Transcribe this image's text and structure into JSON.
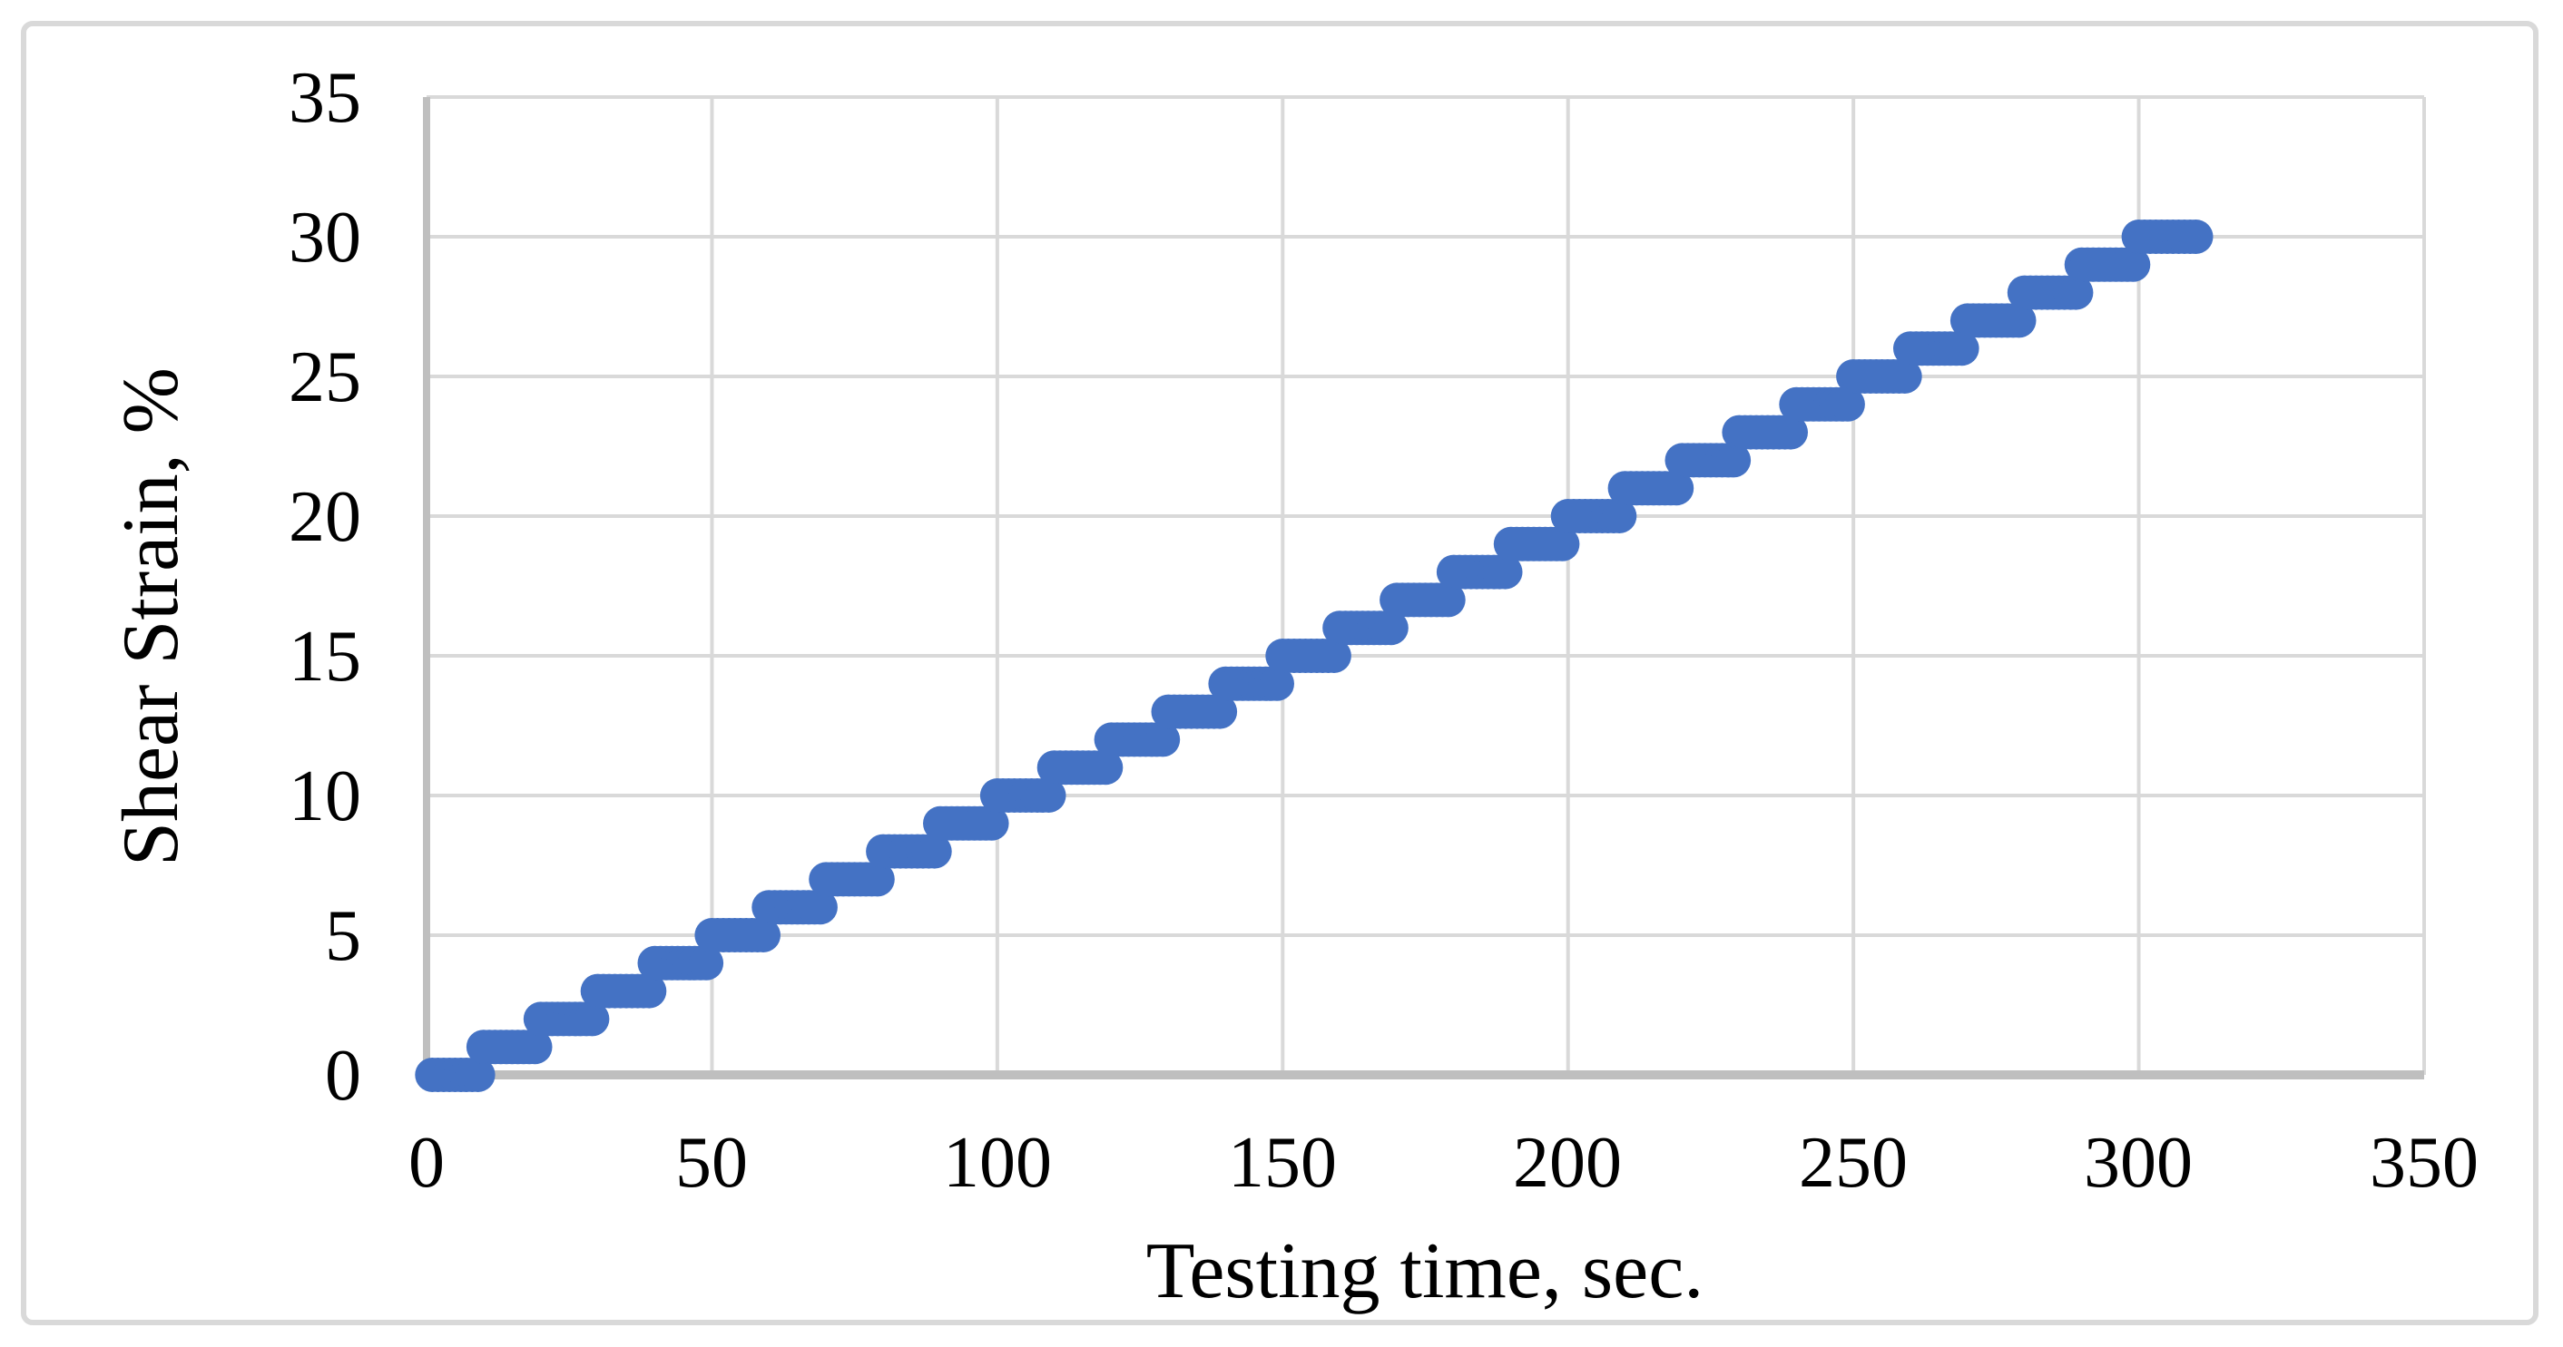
{
  "figure": {
    "background": "#FFFFFF",
    "border_color": "#D9D9D9"
  },
  "chart_data": {
    "type": "scatter",
    "title": "",
    "xlabel": "Testing time, sec.",
    "ylabel": "Shear Strain, %",
    "xlim": [
      0,
      350
    ],
    "ylim": [
      0,
      35
    ],
    "x_ticks": [
      "0",
      "50",
      "100",
      "150",
      "200",
      "250",
      "300",
      "350"
    ],
    "y_ticks": [
      "0",
      "5",
      "10",
      "15",
      "20",
      "25",
      "30",
      "35"
    ],
    "grid": true,
    "legend_position": "none",
    "marker": {
      "shape": "circle",
      "color": "#4472C4",
      "radius_px": 19
    },
    "colors": {
      "gridline": "#D9D9D9",
      "axis_line": "#BFBFBF",
      "text": "#000000"
    },
    "series": [
      {
        "name": "shear-strain-vs-time",
        "pattern": "staircase",
        "strain_step_percent": 1,
        "step_duration_sec": 10,
        "sample_interval_sec": 1,
        "x_end_sec": 310,
        "y_end_percent": 30,
        "steps": [
          {
            "strain": 0,
            "t_start": 1,
            "t_end": 9
          },
          {
            "strain": 1,
            "t_start": 10,
            "t_end": 19
          },
          {
            "strain": 2,
            "t_start": 20,
            "t_end": 29
          },
          {
            "strain": 3,
            "t_start": 30,
            "t_end": 39
          },
          {
            "strain": 4,
            "t_start": 40,
            "t_end": 49
          },
          {
            "strain": 5,
            "t_start": 50,
            "t_end": 59
          },
          {
            "strain": 6,
            "t_start": 60,
            "t_end": 69
          },
          {
            "strain": 7,
            "t_start": 70,
            "t_end": 79
          },
          {
            "strain": 8,
            "t_start": 80,
            "t_end": 89
          },
          {
            "strain": 9,
            "t_start": 90,
            "t_end": 99
          },
          {
            "strain": 10,
            "t_start": 100,
            "t_end": 109
          },
          {
            "strain": 11,
            "t_start": 110,
            "t_end": 119
          },
          {
            "strain": 12,
            "t_start": 120,
            "t_end": 129
          },
          {
            "strain": 13,
            "t_start": 130,
            "t_end": 139
          },
          {
            "strain": 14,
            "t_start": 140,
            "t_end": 149
          },
          {
            "strain": 15,
            "t_start": 150,
            "t_end": 159
          },
          {
            "strain": 16,
            "t_start": 160,
            "t_end": 169
          },
          {
            "strain": 17,
            "t_start": 170,
            "t_end": 179
          },
          {
            "strain": 18,
            "t_start": 180,
            "t_end": 189
          },
          {
            "strain": 19,
            "t_start": 190,
            "t_end": 199
          },
          {
            "strain": 20,
            "t_start": 200,
            "t_end": 209
          },
          {
            "strain": 21,
            "t_start": 210,
            "t_end": 219
          },
          {
            "strain": 22,
            "t_start": 220,
            "t_end": 229
          },
          {
            "strain": 23,
            "t_start": 230,
            "t_end": 239
          },
          {
            "strain": 24,
            "t_start": 240,
            "t_end": 249
          },
          {
            "strain": 25,
            "t_start": 250,
            "t_end": 259
          },
          {
            "strain": 26,
            "t_start": 260,
            "t_end": 269
          },
          {
            "strain": 27,
            "t_start": 270,
            "t_end": 279
          },
          {
            "strain": 28,
            "t_start": 280,
            "t_end": 289
          },
          {
            "strain": 29,
            "t_start": 290,
            "t_end": 299
          },
          {
            "strain": 30,
            "t_start": 300,
            "t_end": 310
          }
        ]
      }
    ]
  }
}
